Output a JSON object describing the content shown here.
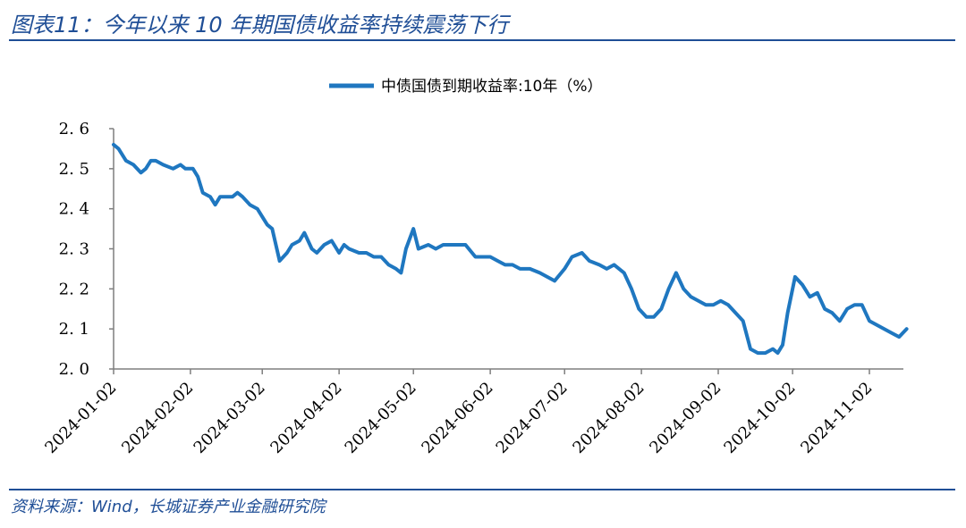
{
  "header": {
    "title": "图表11：今年以来 10 年期国债收益率持续震荡下行"
  },
  "footer": {
    "source": "资料来源：Wind，长城证券产业金融研究院"
  },
  "colors": {
    "line": "#1f77c0",
    "accent": "#1f4e96",
    "axis": "#7f7f7f"
  },
  "chart_data": {
    "type": "line",
    "title": "",
    "xlabel": "",
    "ylabel": "",
    "ylim": [
      2.0,
      2.6
    ],
    "yticks": [
      "2.0",
      "2.1",
      "2.2",
      "2.3",
      "2.4",
      "2.5",
      "2.6"
    ],
    "xticks": [
      "2024-01-02",
      "2024-02-02",
      "2024-03-02",
      "2024-04-02",
      "2024-05-02",
      "2024-06-02",
      "2024-07-02",
      "2024-08-02",
      "2024-09-02",
      "2024-10-02",
      "2024-11-02"
    ],
    "legend": "top-center",
    "grid": false,
    "series": [
      {
        "name": "中债国债到期收益率:10年（%）",
        "x": [
          "2024-01-02",
          "2024-01-04",
          "2024-01-07",
          "2024-01-10",
          "2024-01-13",
          "2024-01-15",
          "2024-01-17",
          "2024-01-19",
          "2024-01-22",
          "2024-01-26",
          "2024-01-29",
          "2024-01-31",
          "2024-02-03",
          "2024-02-05",
          "2024-02-07",
          "2024-02-10",
          "2024-02-12",
          "2024-02-14",
          "2024-02-16",
          "2024-02-19",
          "2024-02-21",
          "2024-02-23",
          "2024-02-26",
          "2024-02-29",
          "2024-03-02",
          "2024-03-04",
          "2024-03-06",
          "2024-03-09",
          "2024-03-12",
          "2024-03-14",
          "2024-03-17",
          "2024-03-19",
          "2024-03-22",
          "2024-03-24",
          "2024-03-27",
          "2024-03-30",
          "2024-04-02",
          "2024-04-04",
          "2024-04-06",
          "2024-04-10",
          "2024-04-13",
          "2024-04-16",
          "2024-04-19",
          "2024-04-22",
          "2024-04-25",
          "2024-04-27",
          "2024-04-29",
          "2024-05-02",
          "2024-05-04",
          "2024-05-08",
          "2024-05-11",
          "2024-05-14",
          "2024-05-17",
          "2024-05-20",
          "2024-05-23",
          "2024-05-27",
          "2024-05-30",
          "2024-06-02",
          "2024-06-05",
          "2024-06-08",
          "2024-06-11",
          "2024-06-14",
          "2024-06-18",
          "2024-06-22",
          "2024-06-25",
          "2024-06-28",
          "2024-07-02",
          "2024-07-05",
          "2024-07-09",
          "2024-07-12",
          "2024-07-16",
          "2024-07-19",
          "2024-07-22",
          "2024-07-26",
          "2024-07-29",
          "2024-08-01",
          "2024-08-04",
          "2024-08-07",
          "2024-08-10",
          "2024-08-13",
          "2024-08-16",
          "2024-08-19",
          "2024-08-22",
          "2024-08-25",
          "2024-08-28",
          "2024-08-31",
          "2024-09-03",
          "2024-09-06",
          "2024-09-09",
          "2024-09-12",
          "2024-09-15",
          "2024-09-18",
          "2024-09-21",
          "2024-09-24",
          "2024-09-26",
          "2024-09-28",
          "2024-09-30",
          "2024-10-03",
          "2024-10-06",
          "2024-10-09",
          "2024-10-12",
          "2024-10-15",
          "2024-10-18",
          "2024-10-21",
          "2024-10-24",
          "2024-10-27",
          "2024-10-30",
          "2024-11-02",
          "2024-11-05",
          "2024-11-08",
          "2024-11-11",
          "2024-11-14",
          "2024-11-17"
        ],
        "values": [
          2.56,
          2.55,
          2.52,
          2.51,
          2.49,
          2.5,
          2.52,
          2.52,
          2.51,
          2.5,
          2.51,
          2.5,
          2.5,
          2.48,
          2.44,
          2.43,
          2.41,
          2.43,
          2.43,
          2.43,
          2.44,
          2.43,
          2.41,
          2.4,
          2.38,
          2.36,
          2.35,
          2.27,
          2.29,
          2.31,
          2.32,
          2.34,
          2.3,
          2.29,
          2.31,
          2.32,
          2.29,
          2.31,
          2.3,
          2.29,
          2.29,
          2.28,
          2.28,
          2.26,
          2.25,
          2.24,
          2.3,
          2.35,
          2.3,
          2.31,
          2.3,
          2.31,
          2.31,
          2.31,
          2.31,
          2.28,
          2.28,
          2.28,
          2.27,
          2.26,
          2.26,
          2.25,
          2.25,
          2.24,
          2.23,
          2.22,
          2.25,
          2.28,
          2.29,
          2.27,
          2.26,
          2.25,
          2.26,
          2.24,
          2.2,
          2.15,
          2.13,
          2.13,
          2.15,
          2.2,
          2.24,
          2.2,
          2.18,
          2.17,
          2.16,
          2.16,
          2.17,
          2.16,
          2.14,
          2.12,
          2.05,
          2.04,
          2.04,
          2.05,
          2.04,
          2.06,
          2.14,
          2.23,
          2.21,
          2.18,
          2.19,
          2.15,
          2.14,
          2.12,
          2.15,
          2.16,
          2.16,
          2.12,
          2.11,
          2.1,
          2.09,
          2.08,
          2.1
        ]
      }
    ]
  }
}
